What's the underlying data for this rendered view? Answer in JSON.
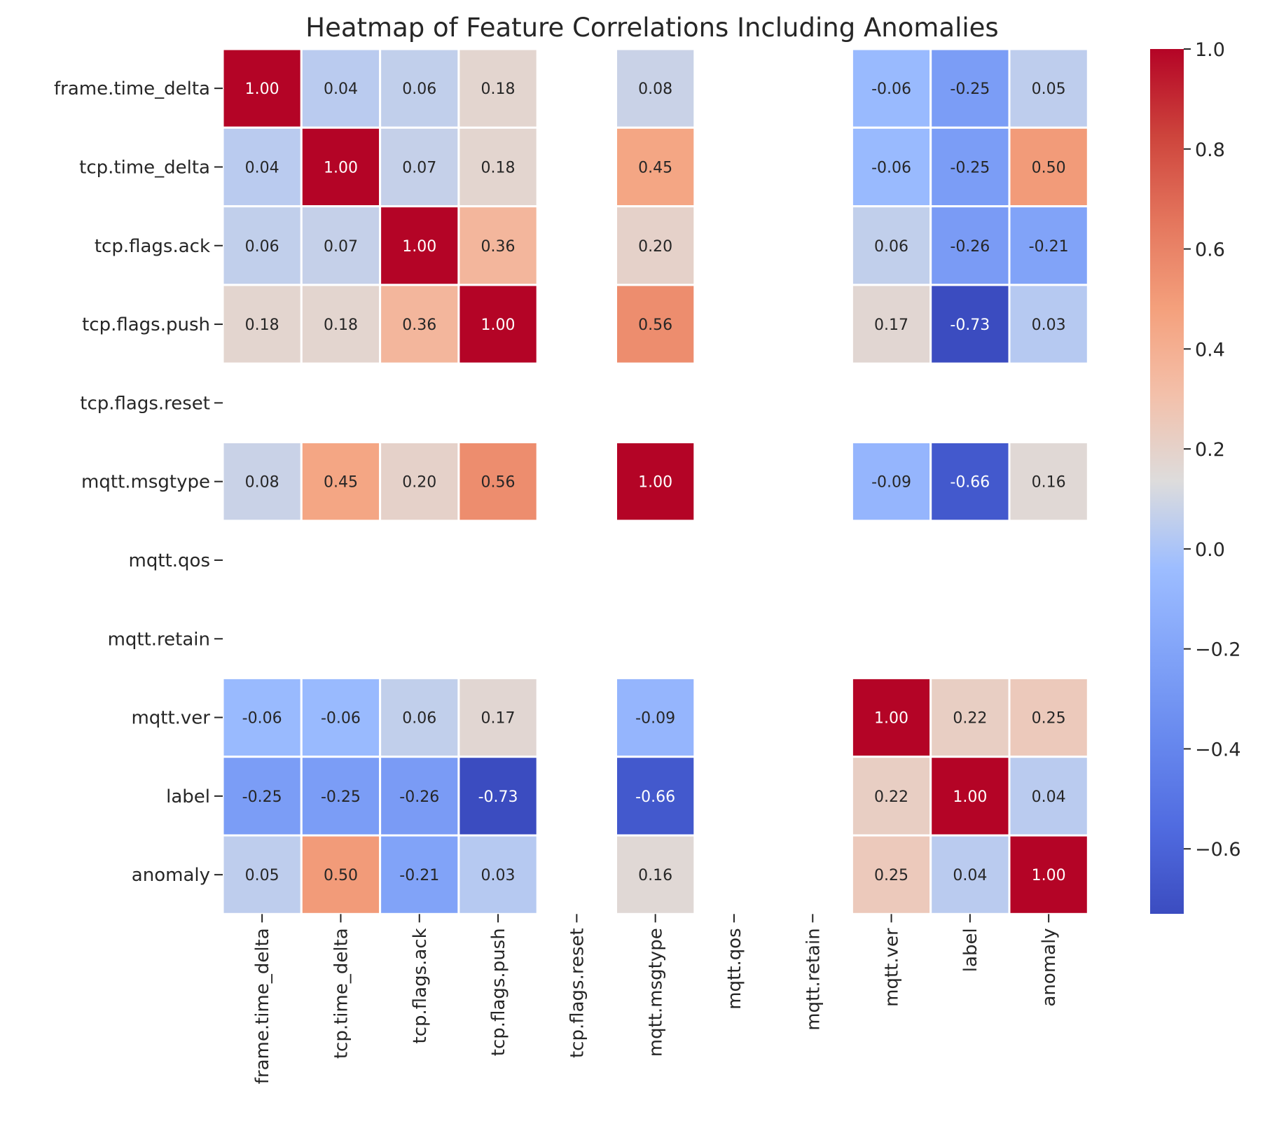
{
  "chart_data": {
    "type": "heatmap",
    "title": "Heatmap of Feature Correlations Including Anomalies",
    "xlabel": "",
    "ylabel": "",
    "categories": [
      "frame.time_delta",
      "tcp.time_delta",
      "tcp.flags.ack",
      "tcp.flags.push",
      "tcp.flags.reset",
      "mqtt.msgtype",
      "mqtt.qos",
      "mqtt.retain",
      "mqtt.ver",
      "label",
      "anomaly"
    ],
    "values": [
      [
        1.0,
        0.04,
        0.06,
        0.18,
        null,
        0.08,
        null,
        null,
        -0.06,
        -0.25,
        0.05
      ],
      [
        0.04,
        1.0,
        0.07,
        0.18,
        null,
        0.45,
        null,
        null,
        -0.06,
        -0.25,
        0.5
      ],
      [
        0.06,
        0.07,
        1.0,
        0.36,
        null,
        0.2,
        null,
        null,
        0.06,
        -0.26,
        -0.21
      ],
      [
        0.18,
        0.18,
        0.36,
        1.0,
        null,
        0.56,
        null,
        null,
        0.17,
        -0.73,
        0.03
      ],
      [
        null,
        null,
        null,
        null,
        null,
        null,
        null,
        null,
        null,
        null,
        null
      ],
      [
        0.08,
        0.45,
        0.2,
        0.56,
        null,
        1.0,
        null,
        null,
        -0.09,
        -0.66,
        0.16
      ],
      [
        null,
        null,
        null,
        null,
        null,
        null,
        null,
        null,
        null,
        null,
        null
      ],
      [
        null,
        null,
        null,
        null,
        null,
        null,
        null,
        null,
        null,
        null,
        null
      ],
      [
        -0.06,
        -0.06,
        0.06,
        0.17,
        null,
        -0.09,
        null,
        null,
        1.0,
        0.22,
        0.25
      ],
      [
        -0.25,
        -0.25,
        -0.26,
        -0.73,
        null,
        -0.66,
        null,
        null,
        0.22,
        1.0,
        0.04
      ],
      [
        0.05,
        0.5,
        -0.21,
        0.03,
        null,
        0.16,
        null,
        null,
        0.25,
        0.04,
        1.0
      ]
    ],
    "colormap": "coolwarm",
    "value_format": "2 decimals",
    "color_range": [
      -0.73,
      1.0
    ],
    "colorbar_ticks": [
      "−0.6",
      "−0.4",
      "−0.2",
      "0.0",
      "0.2",
      "0.4",
      "0.6",
      "0.8",
      "1.0"
    ],
    "colorbar_tick_values": [
      -0.6,
      -0.4,
      -0.2,
      0.0,
      0.2,
      0.4,
      0.6,
      0.8,
      1.0
    ],
    "legend": "colorbar right",
    "grid": false
  }
}
